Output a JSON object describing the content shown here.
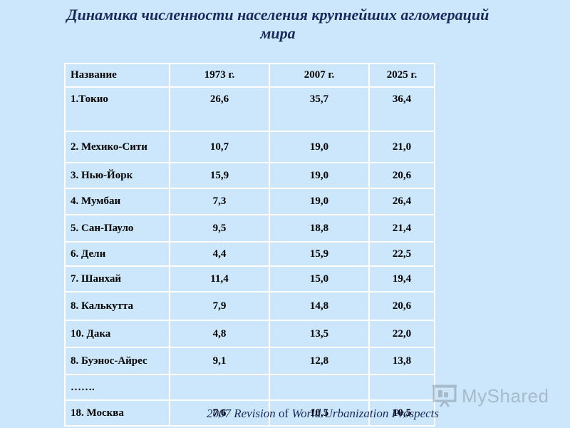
{
  "title": {
    "line1": "Динамика численности населения крупнейших агломераций",
    "line2": "мира"
  },
  "table": {
    "headers": [
      "Название",
      "1973 г.",
      "2007 г.",
      "2025 г."
    ],
    "rows": [
      [
        "1.Токио",
        "26,6",
        "35,7",
        "36,4"
      ],
      [
        "2. Мехико-Сити",
        "10,7",
        "19,0",
        "21,0"
      ],
      [
        "3. Нью-Йорк",
        "15,9",
        "19,0",
        "20,6"
      ],
      [
        "4. Мумбаи",
        "7,3",
        "19,0",
        "26,4"
      ],
      [
        "5. Сан-Пауло",
        "9,5",
        "18,8",
        "21,4"
      ],
      [
        "6. Дели",
        "4,4",
        "15,9",
        "22,5"
      ],
      [
        "7. Шанхай",
        "11,4",
        "15,0",
        "19,4"
      ],
      [
        "8. Калькутта",
        "7,9",
        "14,8",
        "20,6"
      ],
      [
        "10. Дака",
        "4,8",
        "13,5",
        "22,0"
      ],
      [
        "8. Буэнос-Айрес",
        "9,1",
        "12,8",
        "13,8"
      ],
      [
        "…….",
        "",
        "",
        ""
      ],
      [
        "18. Москва",
        "7,6",
        "10,5",
        "10,5"
      ]
    ]
  },
  "source": {
    "part1": "2007 Revision",
    "part2": " of ",
    "part3": "World Urbanization Prospects"
  },
  "watermark": {
    "text": "MyShared",
    "icon": "presentation-screen-icon"
  },
  "colors": {
    "background": "#cce7fb",
    "title": "#1a2a5c",
    "grid": "#ffffff"
  }
}
